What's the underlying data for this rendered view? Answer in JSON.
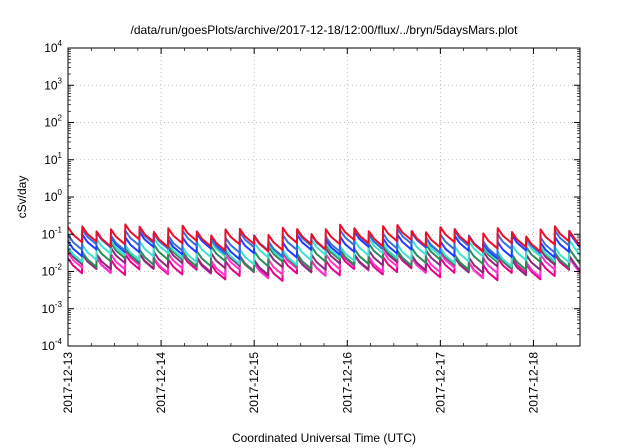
{
  "chart_data": {
    "type": "line",
    "title": "/data/run/goesPlots/archive/2017-12-18/12:00/flux/../bryn/5daysMars.plot",
    "xlabel": "Coordinated Universal Time (UTC)",
    "ylabel": "cSv/day",
    "yscale": "log",
    "ylim": [
      0.0001,
      10000
    ],
    "y_tick_labels": [
      {
        "base": "10",
        "exp": "-4"
      },
      {
        "base": "10",
        "exp": "-3"
      },
      {
        "base": "10",
        "exp": "-2"
      },
      {
        "base": "10",
        "exp": "-1"
      },
      {
        "base": "10",
        "exp": "0"
      },
      {
        "base": "10",
        "exp": "1"
      },
      {
        "base": "10",
        "exp": "2"
      },
      {
        "base": "10",
        "exp": "3"
      },
      {
        "base": "10",
        "exp": "4"
      }
    ],
    "x_tick_labels": [
      "2017-12-13",
      "2017-12-14",
      "2017-12-15",
      "2017-12-16",
      "2017-12-17",
      "2017-12-18"
    ],
    "xlim": [
      "2017-12-13T00:00",
      "2017-12-18T12:00"
    ],
    "grid": true,
    "legend": "none",
    "series": [
      {
        "color": "#e8008a",
        "typical_value": 0.012
      },
      {
        "color": "#ff33cc",
        "typical_value": 0.014
      },
      {
        "color": "#8c2a7a",
        "typical_value": 0.017
      },
      {
        "color": "#2e8b57",
        "typical_value": 0.022
      },
      {
        "color": "#40e0d0",
        "typical_value": 0.03
      },
      {
        "color": "#1e3cff",
        "typical_value": 0.045
      },
      {
        "color": "#3a6fd8",
        "typical_value": 0.055
      },
      {
        "color": "#e8102a",
        "typical_value": 0.07
      }
    ]
  }
}
